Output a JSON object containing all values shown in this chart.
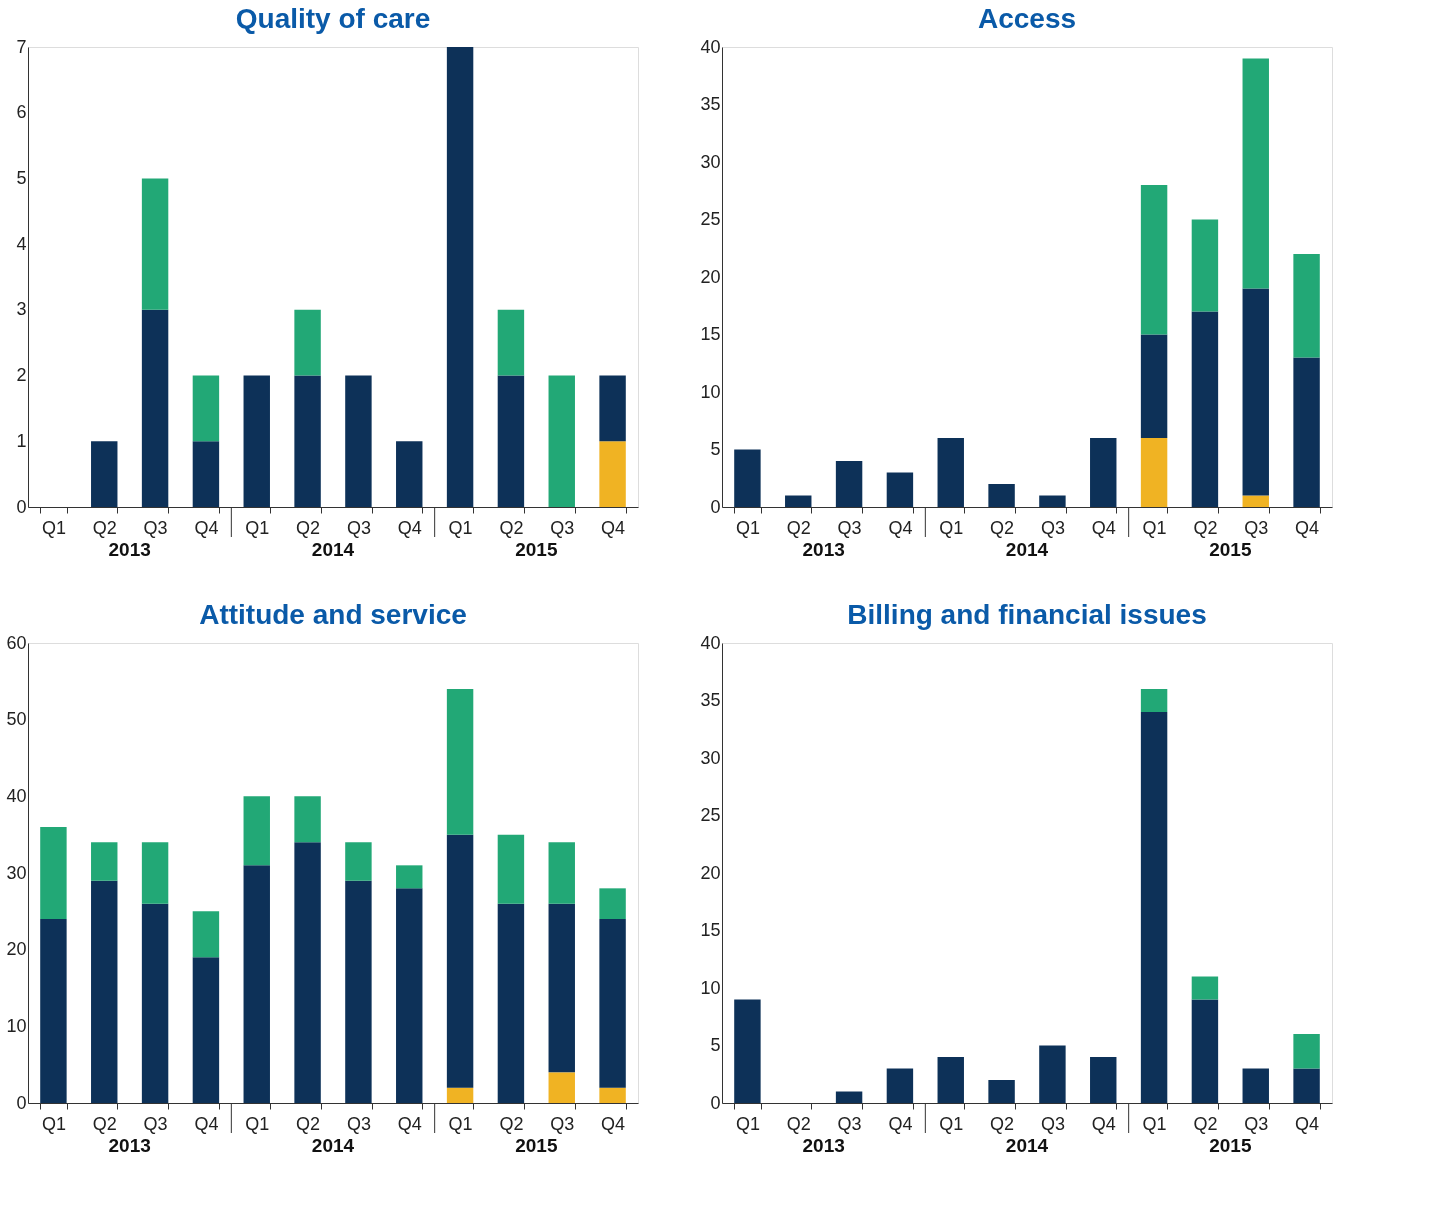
{
  "chart_data": [
    {
      "type": "bar",
      "title": "Quality of care",
      "stacked": true,
      "categories": [
        "Q1",
        "Q2",
        "Q3",
        "Q4",
        "Q1",
        "Q2",
        "Q3",
        "Q4",
        "Q1",
        "Q2",
        "Q3",
        "Q4"
      ],
      "annotations": [
        "2013",
        "2014",
        "2015"
      ],
      "ylim": [
        0,
        7
      ],
      "yticks": [
        0,
        1,
        2,
        3,
        4,
        5,
        6,
        7
      ],
      "grid": false,
      "legend": false,
      "series": [
        {
          "color": "#f0b323",
          "values": [
            0,
            0,
            0,
            0,
            0,
            0,
            0,
            0,
            0,
            0,
            0,
            1
          ]
        },
        {
          "color": "#0d3158",
          "values": [
            0,
            1,
            3,
            1,
            2,
            2,
            2,
            1,
            7,
            2,
            0,
            1
          ]
        },
        {
          "color": "#22a876",
          "values": [
            0,
            0,
            2,
            1,
            0,
            1,
            0,
            0,
            0,
            1,
            2,
            0
          ]
        }
      ]
    },
    {
      "type": "bar",
      "title": "Access",
      "stacked": true,
      "categories": [
        "Q1",
        "Q2",
        "Q3",
        "Q4",
        "Q1",
        "Q2",
        "Q3",
        "Q4",
        "Q1",
        "Q2",
        "Q3",
        "Q4"
      ],
      "annotations": [
        "2013",
        "2014",
        "2015"
      ],
      "ylim": [
        0,
        40
      ],
      "yticks": [
        0,
        5,
        10,
        15,
        20,
        25,
        30,
        35,
        40
      ],
      "grid": false,
      "legend": false,
      "series": [
        {
          "color": "#f0b323",
          "values": [
            0,
            0,
            0,
            0,
            0,
            0,
            0,
            0,
            6,
            0,
            1,
            0
          ]
        },
        {
          "color": "#0d3158",
          "values": [
            5,
            1,
            4,
            3,
            6,
            2,
            1,
            6,
            9,
            17,
            18,
            13
          ]
        },
        {
          "color": "#22a876",
          "values": [
            0,
            0,
            0,
            0,
            0,
            0,
            0,
            0,
            13,
            8,
            20,
            9
          ]
        }
      ]
    },
    {
      "type": "bar",
      "title": "Attitude and service",
      "stacked": true,
      "categories": [
        "Q1",
        "Q2",
        "Q3",
        "Q4",
        "Q1",
        "Q2",
        "Q3",
        "Q4",
        "Q1",
        "Q2",
        "Q3",
        "Q4"
      ],
      "annotations": [
        "2013",
        "2014",
        "2015"
      ],
      "ylim": [
        0,
        60
      ],
      "yticks": [
        0,
        10,
        20,
        30,
        40,
        50,
        60
      ],
      "grid": false,
      "legend": false,
      "series": [
        {
          "color": "#f0b323",
          "values": [
            0,
            0,
            0,
            0,
            0,
            0,
            0,
            0,
            2,
            0,
            4,
            2
          ]
        },
        {
          "color": "#0d3158",
          "values": [
            24,
            29,
            26,
            19,
            31,
            34,
            29,
            28,
            33,
            26,
            22,
            22
          ]
        },
        {
          "color": "#22a876",
          "values": [
            12,
            5,
            8,
            6,
            9,
            6,
            5,
            3,
            19,
            9,
            8,
            4
          ]
        }
      ]
    },
    {
      "type": "bar",
      "title": "Billing and financial issues",
      "stacked": true,
      "categories": [
        "Q1",
        "Q2",
        "Q3",
        "Q4",
        "Q1",
        "Q2",
        "Q3",
        "Q4",
        "Q1",
        "Q2",
        "Q3",
        "Q4"
      ],
      "annotations": [
        "2013",
        "2014",
        "2015"
      ],
      "ylim": [
        0,
        40
      ],
      "yticks": [
        0,
        5,
        10,
        15,
        20,
        25,
        30,
        35,
        40
      ],
      "grid": false,
      "legend": false,
      "series": [
        {
          "color": "#f0b323",
          "values": [
            0,
            0,
            0,
            0,
            0,
            0,
            0,
            0,
            0,
            0,
            0,
            0
          ]
        },
        {
          "color": "#0d3158",
          "values": [
            9,
            0,
            1,
            3,
            4,
            2,
            5,
            4,
            34,
            9,
            3,
            3
          ]
        },
        {
          "color": "#22a876",
          "values": [
            0,
            0,
            0,
            0,
            0,
            0,
            0,
            0,
            2,
            2,
            0,
            3
          ]
        }
      ]
    }
  ]
}
